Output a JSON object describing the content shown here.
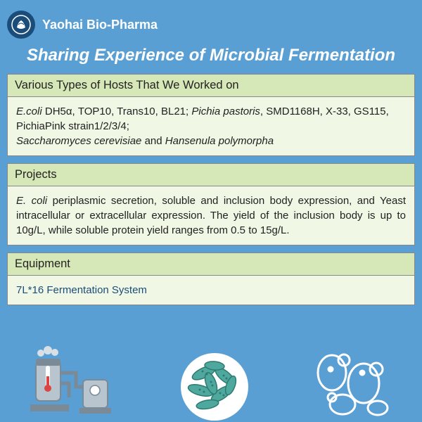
{
  "brand": {
    "name": "Yaohai Bio-Pharma",
    "logo_bg": "#1a4d7a",
    "logo_fg": "#ffffff"
  },
  "page": {
    "title": "Sharing Experience of Microbial Fermentation",
    "bg_color": "#5a9fd4"
  },
  "sections": {
    "hosts": {
      "title": "Various Types of Hosts That We Worked on",
      "body_parts": [
        {
          "text": "E.coli",
          "italic": true
        },
        {
          "text": " DH5α, TOP10, Trans10, BL21; ",
          "italic": false
        },
        {
          "text": "Pichia pastoris",
          "italic": true
        },
        {
          "text": ", SMD1168H, X-33, GS115, PichiaPink strain1/2/3/4;",
          "italic": false
        }
      ],
      "body_line2": [
        {
          "text": "Saccharomyces cerevisiae",
          "italic": true
        },
        {
          "text": " and ",
          "italic": false
        },
        {
          "text": "Hansenula polymorpha",
          "italic": true
        }
      ]
    },
    "projects": {
      "title": "Projects",
      "body_parts": [
        {
          "text": "E. coli",
          "italic": true
        },
        {
          "text": " periplasmic secretion, soluble and inclusion body expression, and Yeast intracellular or extracellular expression. The yield of the inclusion body is up to 10g/L, while soluble protein yield ranges from 0.5 to 15g/L.",
          "italic": false
        }
      ]
    },
    "equipment": {
      "title": "Equipment",
      "body": "7L*16 Fermentation System"
    }
  },
  "colors": {
    "section_header_bg": "#d7e8b8",
    "section_body_bg": "#f0f7e5",
    "section_border": "#888888",
    "equipment_text": "#1a4d7a",
    "factory_gray": "#b8c5ce",
    "factory_dark": "#7a8a96",
    "microbe_circle": "#ffffff",
    "microbe_cell": "#4fa89e",
    "microbe_cell_dark": "#2d7a70",
    "cells_outline": "#ffffff"
  },
  "illustrations": {
    "factory": "factory-equipment-icon",
    "microbes": "microbe-cluster-icon",
    "cells": "yeast-cells-icon"
  }
}
